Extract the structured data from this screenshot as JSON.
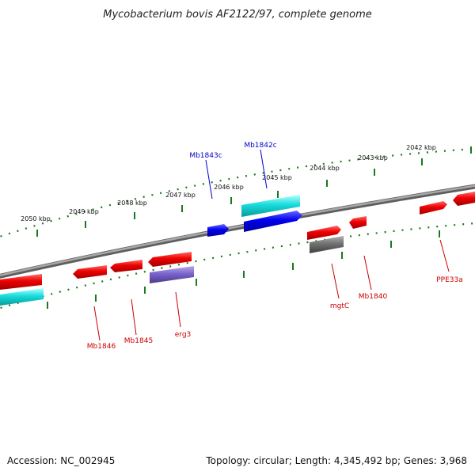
{
  "title": "Mycobacterium bovis AF2122/97, complete genome",
  "footer": {
    "accession": "Accession: NC_002945",
    "topology": "Topology: circular; Length: 4,345,492 bp; Genes: 3,968"
  },
  "colors": {
    "backbone": "#8a8a8a",
    "tick": "#1a7a1a",
    "gene_red": "#ee0000",
    "gene_cyan": "#18dcdc",
    "gene_blue": "#0000ee",
    "gene_purple": "#7a63cc",
    "gene_gray": "#707070",
    "label_blue": "#0000cc",
    "label_red": "#cc0000"
  },
  "kbp_labels": [
    "2042 kbp",
    "2043 kbp",
    "2044 kbp",
    "2045 kbp",
    "2046 kbp",
    "2047 kbp",
    "2048 kbp",
    "2049 kbp",
    "2050 kbp"
  ],
  "top_labels": [
    {
      "text": "Mb1843c"
    },
    {
      "text": "Mb1842c"
    }
  ],
  "bottom_labels": [
    {
      "text": "Mb1846"
    },
    {
      "text": "Mb1845"
    },
    {
      "text": "erg3"
    },
    {
      "text": "mgtC"
    },
    {
      "text": "Mb1840"
    },
    {
      "text": "PPE33a"
    }
  ]
}
